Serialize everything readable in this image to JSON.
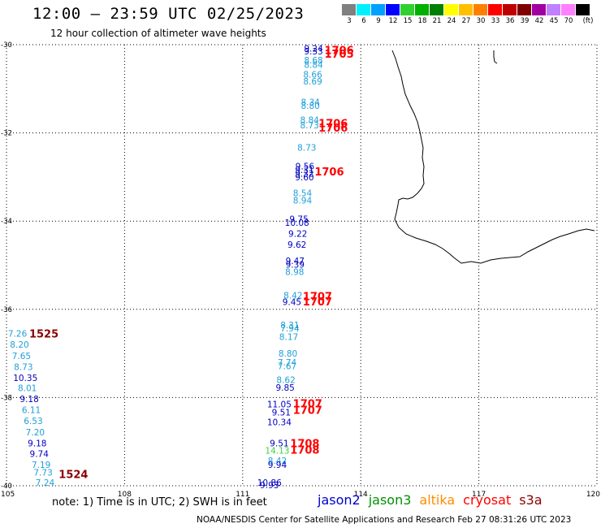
{
  "header": {
    "title": "12:00 – 23:59 UTC 02/25/2023",
    "subtitle": "12 hour collection of altimeter wave heights"
  },
  "legend": {
    "unit": "(ft)",
    "bins": [
      {
        "label": "3",
        "color": "#808080"
      },
      {
        "label": "6",
        "color": "#00f0ff"
      },
      {
        "label": "9",
        "color": "#00a0ff"
      },
      {
        "label": "12",
        "color": "#0000ff"
      },
      {
        "label": "15",
        "color": "#30d030"
      },
      {
        "label": "18",
        "color": "#00b000"
      },
      {
        "label": "21",
        "color": "#008000"
      },
      {
        "label": "24",
        "color": "#ffff00"
      },
      {
        "label": "27",
        "color": "#ffc000"
      },
      {
        "label": "30",
        "color": "#ff8000"
      },
      {
        "label": "33",
        "color": "#ff0000"
      },
      {
        "label": "36",
        "color": "#c00000"
      },
      {
        "label": "39",
        "color": "#800000"
      },
      {
        "label": "42",
        "color": "#a000a0"
      },
      {
        "label": "45",
        "color": "#c080ff"
      },
      {
        "label": "70",
        "color": "#ff80ff"
      },
      {
        "label": "",
        "color": "#000000"
      }
    ]
  },
  "map": {
    "lat_labels": [
      "-30",
      "-32",
      "-34",
      "-36",
      "-38",
      "-40"
    ],
    "lon_labels": [
      "105",
      "108",
      "111",
      "114",
      "117",
      "120"
    ],
    "lon_range": [
      105,
      120
    ],
    "lat_range": [
      -40,
      -30
    ],
    "gridlines": "dotted",
    "coastline": "Western Australia (south-west)"
  },
  "observations": [
    {
      "v": "9.24",
      "lon": 112.8,
      "lat": -30.08,
      "c": "#0000c0"
    },
    {
      "v": "9.33",
      "lon": 112.8,
      "lat": -30.15,
      "c": "#0000c0"
    },
    {
      "v": "8.68",
      "lon": 112.8,
      "lat": -30.35,
      "c": "#1ea0d8"
    },
    {
      "v": "8.84",
      "lon": 112.8,
      "lat": -30.45,
      "c": "#1ea0d8"
    },
    {
      "v": "8.66",
      "lon": 112.78,
      "lat": -30.67,
      "c": "#1ea0d8"
    },
    {
      "v": "8.69",
      "lon": 112.78,
      "lat": -30.83,
      "c": "#1ea0d8"
    },
    {
      "v": "8.34",
      "lon": 112.72,
      "lat": -31.3,
      "c": "#1ea0d8"
    },
    {
      "v": "8.80",
      "lon": 112.72,
      "lat": -31.38,
      "c": "#1ea0d8"
    },
    {
      "v": "8.84",
      "lon": 112.7,
      "lat": -31.7,
      "c": "#1ea0d8"
    },
    {
      "v": "8.73",
      "lon": 112.7,
      "lat": -31.82,
      "c": "#1ea0d8"
    },
    {
      "v": "8.73",
      "lon": 112.63,
      "lat": -32.33,
      "c": "#1ea0d8"
    },
    {
      "v": "9.56",
      "lon": 112.58,
      "lat": -32.75,
      "c": "#0000c0"
    },
    {
      "v": "9.31",
      "lon": 112.57,
      "lat": -32.84,
      "c": "#0000c0"
    },
    {
      "v": "9.32",
      "lon": 112.57,
      "lat": -32.92,
      "c": "#0000c0"
    },
    {
      "v": "9.60",
      "lon": 112.57,
      "lat": -33.0,
      "c": "#0000c0"
    },
    {
      "v": "8.54",
      "lon": 112.52,
      "lat": -33.36,
      "c": "#1ea0d8"
    },
    {
      "v": "8.94",
      "lon": 112.52,
      "lat": -33.53,
      "c": "#1ea0d8"
    },
    {
      "v": "9.75",
      "lon": 112.43,
      "lat": -33.95,
      "c": "#0000c0"
    },
    {
      "v": "10.08",
      "lon": 112.38,
      "lat": -34.03,
      "c": "#0000c0"
    },
    {
      "v": "9.22",
      "lon": 112.4,
      "lat": -34.28,
      "c": "#0000c0"
    },
    {
      "v": "9.62",
      "lon": 112.38,
      "lat": -34.53,
      "c": "#0000c0"
    },
    {
      "v": "9.47",
      "lon": 112.33,
      "lat": -34.9,
      "c": "#0000c0"
    },
    {
      "v": "9.39",
      "lon": 112.33,
      "lat": -34.98,
      "c": "#0000c0"
    },
    {
      "v": "8.98",
      "lon": 112.32,
      "lat": -35.15,
      "c": "#1ea0d8"
    },
    {
      "v": "8.42",
      "lon": 112.28,
      "lat": -35.68,
      "c": "#1ea0d8"
    },
    {
      "v": "9.45",
      "lon": 112.25,
      "lat": -35.83,
      "c": "#0000c0"
    },
    {
      "v": "8.31",
      "lon": 112.2,
      "lat": -36.35,
      "c": "#1ea0d8"
    },
    {
      "v": "7.94",
      "lon": 112.2,
      "lat": -36.43,
      "c": "#1ea0d8"
    },
    {
      "v": "8.17",
      "lon": 112.17,
      "lat": -36.62,
      "c": "#1ea0d8"
    },
    {
      "v": "8.80",
      "lon": 112.15,
      "lat": -37.0,
      "c": "#1ea0d8"
    },
    {
      "v": "7.74",
      "lon": 112.13,
      "lat": -37.2,
      "c": "#1ea0d8"
    },
    {
      "v": "7.67",
      "lon": 112.13,
      "lat": -37.28,
      "c": "#1ea0d8"
    },
    {
      "v": "8.62",
      "lon": 112.1,
      "lat": -37.6,
      "c": "#1ea0d8"
    },
    {
      "v": "9.85",
      "lon": 112.08,
      "lat": -37.77,
      "c": "#0000c0"
    },
    {
      "v": "11.05",
      "lon": 111.93,
      "lat": -38.15,
      "c": "#0000c0"
    },
    {
      "v": "9.51",
      "lon": 111.98,
      "lat": -38.33,
      "c": "#0000c0"
    },
    {
      "v": "10.34",
      "lon": 111.93,
      "lat": -38.55,
      "c": "#0000c0"
    },
    {
      "v": "9.51",
      "lon": 111.93,
      "lat": -39.03,
      "c": "#0000c0"
    },
    {
      "v": "14.13",
      "lon": 111.88,
      "lat": -39.2,
      "c": "#40d040"
    },
    {
      "v": "8.42",
      "lon": 111.88,
      "lat": -39.43,
      "c": "#1ea0d8"
    },
    {
      "v": "9.94",
      "lon": 111.88,
      "lat": -39.52,
      "c": "#0000c0"
    },
    {
      "v": "10.86",
      "lon": 111.68,
      "lat": -39.93,
      "c": "#0000c0"
    },
    {
      "v": "9.93",
      "lon": 111.68,
      "lat": -39.98,
      "c": "#0000c0"
    },
    {
      "v": "7.26",
      "lon": 105.28,
      "lat": -36.55,
      "c": "#1ea0d8"
    },
    {
      "v": "8.20",
      "lon": 105.33,
      "lat": -36.8,
      "c": "#1ea0d8"
    },
    {
      "v": "7.65",
      "lon": 105.38,
      "lat": -37.05,
      "c": "#1ea0d8"
    },
    {
      "v": "8.73",
      "lon": 105.43,
      "lat": -37.3,
      "c": "#1ea0d8"
    },
    {
      "v": "10.35",
      "lon": 105.48,
      "lat": -37.55,
      "c": "#0000c0"
    },
    {
      "v": "8.01",
      "lon": 105.53,
      "lat": -37.78,
      "c": "#1ea0d8"
    },
    {
      "v": "9.18",
      "lon": 105.58,
      "lat": -38.03,
      "c": "#0000c0"
    },
    {
      "v": "6.11",
      "lon": 105.63,
      "lat": -38.28,
      "c": "#1ea0d8"
    },
    {
      "v": "6.53",
      "lon": 105.68,
      "lat": -38.53,
      "c": "#1ea0d8"
    },
    {
      "v": "7.20",
      "lon": 105.73,
      "lat": -38.78,
      "c": "#1ea0d8"
    },
    {
      "v": "9.18",
      "lon": 105.78,
      "lat": -39.03,
      "c": "#0000c0"
    },
    {
      "v": "9.74",
      "lon": 105.83,
      "lat": -39.27,
      "c": "#0000c0"
    },
    {
      "v": "7.19",
      "lon": 105.88,
      "lat": -39.52,
      "c": "#1ea0d8"
    },
    {
      "v": "7.73",
      "lon": 105.93,
      "lat": -39.7,
      "c": "#1ea0d8"
    },
    {
      "v": "7.24",
      "lon": 105.98,
      "lat": -39.93,
      "c": "#1ea0d8"
    }
  ],
  "times": [
    {
      "t": "1706",
      "lon": 113.45,
      "lat": -30.12,
      "c": "#ff0000"
    },
    {
      "t": "1705",
      "lon": 113.45,
      "lat": -30.2,
      "c": "#ff0000"
    },
    {
      "t": "1706",
      "lon": 113.3,
      "lat": -31.78,
      "c": "#ff0000"
    },
    {
      "t": "1706",
      "lon": 113.3,
      "lat": -31.88,
      "c": "#ff0000"
    },
    {
      "t": "1706",
      "lon": 113.2,
      "lat": -32.87,
      "c": "#ff0000"
    },
    {
      "t": "1707",
      "lon": 112.9,
      "lat": -35.7,
      "c": "#ff0000"
    },
    {
      "t": "1707",
      "lon": 112.9,
      "lat": -35.82,
      "c": "#ff0000"
    },
    {
      "t": "1707",
      "lon": 112.65,
      "lat": -38.13,
      "c": "#ff0000"
    },
    {
      "t": "1707",
      "lon": 112.65,
      "lat": -38.28,
      "c": "#ff0000"
    },
    {
      "t": "1708",
      "lon": 112.58,
      "lat": -39.03,
      "c": "#ff0000"
    },
    {
      "t": "1708",
      "lon": 112.58,
      "lat": -39.18,
      "c": "#ff0000"
    },
    {
      "t": "1525",
      "lon": 105.95,
      "lat": -36.55,
      "c": "#8b0000"
    },
    {
      "t": "1524",
      "lon": 106.7,
      "lat": -39.73,
      "c": "#8b0000"
    }
  ],
  "notes": "note: 1) Time is in UTC; 2) SWH is in feet",
  "satellites": [
    {
      "name": "jason2",
      "color": "#0000cc"
    },
    {
      "name": "jason3",
      "color": "#009000"
    },
    {
      "name": "altika",
      "color": "#ff8c00"
    },
    {
      "name": "cryosat",
      "color": "#ff0000"
    },
    {
      "name": "s3a",
      "color": "#8b0000"
    }
  ],
  "footer": "NOAA/NESDIS Center for Satellite Applications and Research    Feb 27 08:31:26 UTC 2023"
}
